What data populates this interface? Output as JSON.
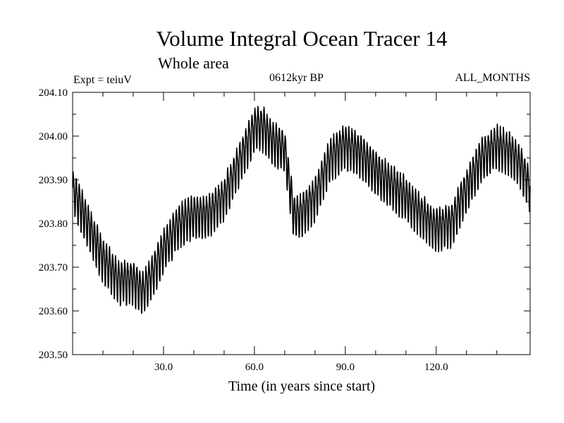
{
  "chart_data": {
    "type": "line",
    "title": "Volume Integral Ocean Tracer 14",
    "subtitle": "Whole area",
    "experiment_label": "Expt = teiuV",
    "period_label": "0612kyr BP",
    "months_label": "ALL_MONTHS",
    "xlabel": "Time (in years since start)",
    "ylabel": "",
    "xlim": [
      0,
      151
    ],
    "ylim": [
      203.5,
      204.1
    ],
    "x_ticks": [
      30,
      60,
      90,
      120
    ],
    "x_tick_labels": [
      "30.0",
      "60.0",
      "90.0",
      "120.0"
    ],
    "y_ticks": [
      203.5,
      203.6,
      203.7,
      203.8,
      203.9,
      204.0,
      204.1
    ],
    "y_tick_labels": [
      "203.50",
      "203.60",
      "203.70",
      "203.80",
      "203.90",
      "204.00",
      "204.10"
    ],
    "annual_cycle_amplitude": 0.045,
    "series": [
      {
        "name": "Volume Integral Ocean Tracer 14",
        "trend_x": [
          0,
          5,
          10,
          15,
          20,
          23,
          26,
          30,
          35,
          40,
          45,
          50,
          55,
          60,
          63,
          66,
          70,
          73,
          75,
          80,
          85,
          90,
          95,
          100,
          105,
          110,
          115,
          120,
          125,
          130,
          135,
          140,
          145,
          148,
          151
        ],
        "trend_y": [
          203.88,
          203.8,
          203.72,
          203.67,
          203.67,
          203.64,
          203.68,
          203.74,
          203.8,
          203.82,
          203.82,
          203.86,
          203.94,
          204.02,
          204.02,
          203.99,
          203.97,
          203.82,
          203.82,
          203.86,
          203.95,
          203.98,
          203.96,
          203.92,
          203.89,
          203.86,
          203.82,
          203.79,
          203.8,
          203.88,
          203.95,
          203.98,
          203.96,
          203.93,
          203.88
        ]
      }
    ]
  }
}
